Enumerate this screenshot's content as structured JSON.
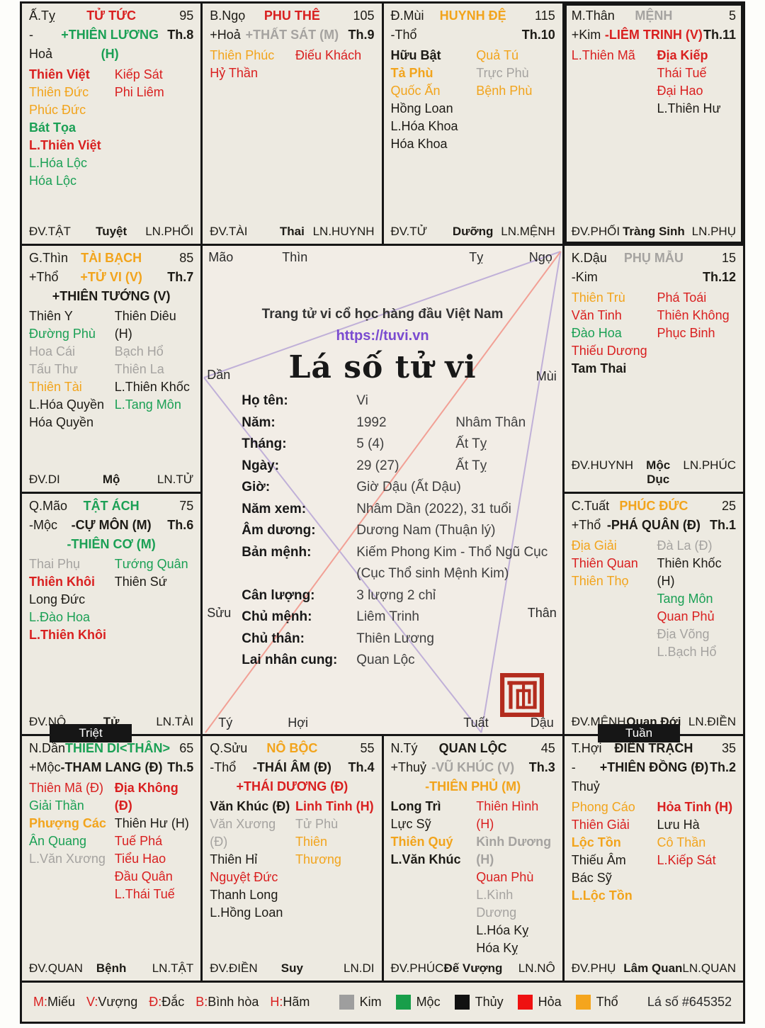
{
  "palette": {
    "red": "#d92020",
    "orange": "#f2a41c",
    "green": "#1ba055",
    "gray": "#a5a3a0",
    "black": "#1d1b16",
    "cell_bg": "#edeae1",
    "center_bg": "#f2ede6",
    "border": "#161616",
    "url_purple": "#7a4bd0",
    "line_trine": "#c0b0d8",
    "line_opposition": "#f2a095",
    "seal_red": "#b32c1e",
    "badge_bg": "#161616"
  },
  "badges": [
    {
      "text": "Triệt"
    },
    {
      "text": "Tuần"
    }
  ],
  "center": {
    "brand": "Trang tử vi cổ học hàng đầu Việt Nam",
    "url": "https://tuvi.vn",
    "title": "Lá số tử vi",
    "branch_markers": {
      "top": [
        "Mão",
        "Thìn",
        "Tỵ",
        "Ngọ"
      ],
      "left": [
        "Dần",
        "Sửu"
      ],
      "right": [
        "Mùi",
        "Thân"
      ],
      "bottom": [
        "Tý",
        "Hợi",
        "Tuất",
        "Dậu"
      ]
    },
    "info": [
      {
        "label": "Họ tên:",
        "value": "Vi",
        "value2": ""
      },
      {
        "label": "Năm:",
        "value": "1992",
        "value2": "Nhâm Thân"
      },
      {
        "label": "Tháng:",
        "value": "5 (4)",
        "value2": "Ất Tỵ"
      },
      {
        "label": "Ngày:",
        "value": "29 (27)",
        "value2": "Ất Tỵ"
      },
      {
        "label": "Giờ:",
        "value": "Giờ Dậu (Ất Dậu)",
        "value2": ""
      },
      {
        "label": "Năm xem:",
        "value": "Nhâm Dần (2022), 31 tuổi",
        "value2": ""
      },
      {
        "label": "Âm dương:",
        "value": "Dương Nam (Thuận lý)",
        "value2": ""
      },
      {
        "label": "Bản mệnh:",
        "value": "Kiếm Phong Kim - Thổ Ngũ Cục",
        "value2": ""
      },
      {
        "label": "",
        "value": "(Cục Thổ sinh Mệnh Kim)",
        "value2": ""
      },
      {
        "label": "Cân lượng:",
        "value": "3 lượng 2 chỉ",
        "value2": ""
      },
      {
        "label": "Chủ mệnh:",
        "value": "Liêm Trinh",
        "value2": ""
      },
      {
        "label": "Chủ thân:",
        "value": "Thiên Lương",
        "value2": ""
      },
      {
        "label": "Lai nhân cung:",
        "value": "Quan Lộc",
        "value2": ""
      }
    ]
  },
  "palaces": [
    {
      "pos": "ty",
      "branch": "Ấ.Tỵ",
      "name": "TỬ TỨC",
      "name_c": "red",
      "number": "95",
      "element": "-Hoả",
      "major1": {
        "t": "+THIÊN LƯƠNG (H)",
        "c": "green"
      },
      "th": "Th.8",
      "major2": null,
      "stars_left": [
        {
          "t": "Thiên Việt",
          "c": "red",
          "b": true
        },
        {
          "t": "Thiên Đức",
          "c": "orange"
        },
        {
          "t": "Phúc Đức",
          "c": "orange"
        },
        {
          "t": "Bát Tọa",
          "c": "green",
          "b": true
        },
        {
          "t": "L.Thiên Việt",
          "c": "red",
          "b": true
        },
        {
          "t": "L.Hóa Lộc",
          "c": "green"
        },
        {
          "t": "Hóa Lộc",
          "c": "green"
        }
      ],
      "stars_right": [
        {
          "t": "Kiếp Sát",
          "c": "red"
        },
        {
          "t": "Phi Liêm",
          "c": "red"
        }
      ],
      "dv": "ĐV.TẬT",
      "stage": "Tuyệt",
      "ln": "LN.PHỐI"
    },
    {
      "pos": "ngo",
      "branch": "B.Ngọ",
      "name": "PHU THÊ",
      "name_c": "red",
      "number": "105",
      "element": "+Hoả",
      "major1": {
        "t": "+THẤT SÁT (M)",
        "c": "gray"
      },
      "th": "Th.9",
      "major2": null,
      "stars_left": [
        {
          "t": "Thiên Phúc",
          "c": "orange"
        },
        {
          "t": "Hỷ Thần",
          "c": "red"
        }
      ],
      "stars_right": [
        {
          "t": "Điếu Khách",
          "c": "red"
        }
      ],
      "dv": "ĐV.TÀI",
      "stage": "Thai",
      "ln": "LN.HUYNH"
    },
    {
      "pos": "mui",
      "branch": "Đ.Mùi",
      "name": "HUYNH ĐỆ",
      "name_c": "orange",
      "number": "115",
      "element": "-Thổ",
      "major1": null,
      "th": "Th.10",
      "major2": null,
      "stars_left": [
        {
          "t": "Hữu Bật",
          "c": "black",
          "b": true
        },
        {
          "t": "Tả Phù",
          "c": "orange",
          "b": true
        },
        {
          "t": "Quốc Ấn",
          "c": "orange"
        },
        {
          "t": "Hồng Loan",
          "c": "black"
        },
        {
          "t": "L.Hóa Khoa",
          "c": "black"
        },
        {
          "t": "Hóa Khoa",
          "c": "black"
        }
      ],
      "stars_right": [
        {
          "t": "Quả Tú",
          "c": "orange"
        },
        {
          "t": "Trực Phù",
          "c": "gray"
        },
        {
          "t": "Bệnh Phù",
          "c": "orange"
        }
      ],
      "dv": "ĐV.TỬ",
      "stage": "Dưỡng",
      "ln": "LN.MỆNH"
    },
    {
      "pos": "than",
      "branch": "M.Thân",
      "name": "MỆNH",
      "name_c": "gray",
      "number": "5",
      "element": "+Kim",
      "major1": {
        "t": "-LIÊM TRINH (V)",
        "c": "red"
      },
      "th": "Th.11",
      "major2": null,
      "highlight": true,
      "stars_left": [
        {
          "t": "L.Thiên Mã",
          "c": "red"
        }
      ],
      "stars_right": [
        {
          "t": "Địa Kiếp",
          "c": "red",
          "b": true
        },
        {
          "t": "Thái Tuế",
          "c": "red"
        },
        {
          "t": "Đại Hao",
          "c": "red"
        },
        {
          "t": "L.Thiên Hư",
          "c": "black"
        }
      ],
      "dv": "ĐV.PHỐI",
      "stage": "Tràng Sinh",
      "ln": "LN.PHỤ"
    },
    {
      "pos": "thin",
      "branch": "G.Thìn",
      "name": "TÀI BẠCH",
      "name_c": "orange",
      "number": "85",
      "element": "+Thổ",
      "major1": {
        "t": "+TỬ VI (V)",
        "c": "orange"
      },
      "th": "Th.7",
      "major2": {
        "t": "+THIÊN TƯỚNG (V)",
        "c": "black"
      },
      "stars_left": [
        {
          "t": "Thiên Y",
          "c": "black"
        },
        {
          "t": "Đường Phù",
          "c": "green"
        },
        {
          "t": "Hoa Cái",
          "c": "gray"
        },
        {
          "t": "Tấu Thư",
          "c": "gray"
        },
        {
          "t": "Thiên Tài",
          "c": "orange"
        },
        {
          "t": "L.Hóa Quyền",
          "c": "black"
        },
        {
          "t": "Hóa Quyền",
          "c": "black"
        }
      ],
      "stars_right": [
        {
          "t": "Thiên Diêu (H)",
          "c": "black"
        },
        {
          "t": "Bạch Hổ",
          "c": "gray"
        },
        {
          "t": "Thiên La",
          "c": "gray"
        },
        {
          "t": "L.Thiên Khốc",
          "c": "black"
        },
        {
          "t": "L.Tang Môn",
          "c": "green"
        }
      ],
      "dv": "ĐV.DI",
      "stage": "Mộ",
      "ln": "LN.TỬ"
    },
    {
      "pos": "dau",
      "branch": "K.Dậu",
      "name": "PHỤ MẪU",
      "name_c": "gray",
      "number": "15",
      "element": "-Kim",
      "major1": null,
      "th": "Th.12",
      "major2": null,
      "stars_left": [
        {
          "t": "Thiên Trù",
          "c": "orange"
        },
        {
          "t": "Văn Tinh",
          "c": "red"
        },
        {
          "t": "Đào Hoa",
          "c": "green"
        },
        {
          "t": "Thiếu Dương",
          "c": "red"
        },
        {
          "t": "Tam Thai",
          "c": "black",
          "b": true
        }
      ],
      "stars_right": [
        {
          "t": "Phá Toái",
          "c": "red"
        },
        {
          "t": "Thiên Không",
          "c": "red"
        },
        {
          "t": "Phục Binh",
          "c": "red"
        }
      ],
      "dv": "ĐV.HUYNH",
      "stage": "Mộc Dục",
      "ln": "LN.PHÚC"
    },
    {
      "pos": "mao",
      "branch": "Q.Mão",
      "name": "TẬT ÁCH",
      "name_c": "green",
      "number": "75",
      "element": "-Mộc",
      "major1": {
        "t": "-CỰ MÔN (M)",
        "c": "black"
      },
      "th": "Th.6",
      "major2": {
        "t": "-THIÊN CƠ (M)",
        "c": "green"
      },
      "stars_left": [
        {
          "t": "Thai Phụ",
          "c": "gray"
        },
        {
          "t": "Thiên Khôi",
          "c": "red",
          "b": true
        },
        {
          "t": "Long Đức",
          "c": "black"
        },
        {
          "t": "L.Đào Hoa",
          "c": "green"
        },
        {
          "t": "L.Thiên Khôi",
          "c": "red",
          "b": true
        }
      ],
      "stars_right": [
        {
          "t": "Tướng Quân",
          "c": "green"
        },
        {
          "t": "Thiên Sứ",
          "c": "black"
        }
      ],
      "dv": "ĐV.NÔ",
      "stage": "Tử",
      "ln": "LN.TÀI"
    },
    {
      "pos": "tuat",
      "branch": "C.Tuất",
      "name": "PHÚC ĐỨC",
      "name_c": "orange",
      "number": "25",
      "element": "+Thổ",
      "major1": {
        "t": "-PHÁ QUÂN (Đ)",
        "c": "black"
      },
      "th": "Th.1",
      "major2": null,
      "stars_left": [
        {
          "t": "Địa Giải",
          "c": "orange"
        },
        {
          "t": "Thiên Quan",
          "c": "red"
        },
        {
          "t": "Thiên Thọ",
          "c": "orange"
        }
      ],
      "stars_right": [
        {
          "t": "Đà La (Đ)",
          "c": "gray"
        },
        {
          "t": "Thiên Khốc (H)",
          "c": "black"
        },
        {
          "t": "Tang Môn",
          "c": "green"
        },
        {
          "t": "Quan Phủ",
          "c": "red"
        },
        {
          "t": "Địa Võng",
          "c": "gray"
        },
        {
          "t": "L.Bạch Hổ",
          "c": "gray"
        }
      ],
      "dv": "ĐV.MỆNH",
      "stage": "Quan Đới",
      "ln": "LN.ĐIỀN"
    },
    {
      "pos": "dan",
      "branch": "N.Dần",
      "name": "THIÊN DI<THÂN>",
      "name_c": "green",
      "number": "65",
      "element": "+Mộc",
      "major1": {
        "t": "-THAM LANG (Đ)",
        "c": "black"
      },
      "th": "Th.5",
      "major2": null,
      "stars_left": [
        {
          "t": "Thiên Mã (Đ)",
          "c": "red"
        },
        {
          "t": "Giải Thần",
          "c": "green"
        },
        {
          "t": "Phượng Các",
          "c": "orange",
          "b": true
        },
        {
          "t": "Ân Quang",
          "c": "green"
        },
        {
          "t": "L.Văn Xương",
          "c": "gray"
        }
      ],
      "stars_right": [
        {
          "t": "Địa Không (Đ)",
          "c": "red",
          "b": true
        },
        {
          "t": "Thiên Hư (H)",
          "c": "black"
        },
        {
          "t": "Tuế Phá",
          "c": "red"
        },
        {
          "t": "Tiểu Hao",
          "c": "red"
        },
        {
          "t": "Đầu Quân",
          "c": "red"
        },
        {
          "t": "L.Thái Tuế",
          "c": "red"
        }
      ],
      "dv": "ĐV.QUAN",
      "stage": "Bệnh",
      "ln": "LN.TẬT"
    },
    {
      "pos": "suu",
      "branch": "Q.Sửu",
      "name": "NÔ BỘC",
      "name_c": "orange",
      "number": "55",
      "element": "-Thổ",
      "major1": {
        "t": "-THÁI ÂM (Đ)",
        "c": "black"
      },
      "th": "Th.4",
      "major2": {
        "t": "+THÁI DƯƠNG (Đ)",
        "c": "red"
      },
      "stars_left": [
        {
          "t": "Văn Khúc (Đ)",
          "c": "black",
          "b": true
        },
        {
          "t": "Văn Xương (Đ)",
          "c": "gray"
        },
        {
          "t": "Thiên Hỉ",
          "c": "black"
        },
        {
          "t": "Nguyệt Đức",
          "c": "red"
        },
        {
          "t": "Thanh Long",
          "c": "black"
        },
        {
          "t": "L.Hồng Loan",
          "c": "black"
        }
      ],
      "stars_right": [
        {
          "t": "Linh Tinh (H)",
          "c": "red",
          "b": true
        },
        {
          "t": "Tử Phù",
          "c": "gray"
        },
        {
          "t": "Thiên Thương",
          "c": "orange"
        }
      ],
      "dv": "ĐV.ĐIỀN",
      "stage": "Suy",
      "ln": "LN.DI"
    },
    {
      "pos": "tys",
      "branch": "N.Tý",
      "name": "QUAN LỘC",
      "name_c": "black",
      "number": "45",
      "element": "+Thuỷ",
      "major1": {
        "t": "-VŨ KHÚC (V)",
        "c": "gray"
      },
      "th": "Th.3",
      "major2": {
        "t": "-THIÊN PHỦ (M)",
        "c": "orange"
      },
      "stars_left": [
        {
          "t": "Long Trì",
          "c": "black",
          "b": true
        },
        {
          "t": "Lực Sỹ",
          "c": "black"
        },
        {
          "t": "Thiên Quý",
          "c": "orange",
          "b": true
        },
        {
          "t": "L.Văn Khúc",
          "c": "black",
          "b": true
        }
      ],
      "stars_right": [
        {
          "t": "Thiên Hình (H)",
          "c": "red"
        },
        {
          "t": "Kình Dương (H)",
          "c": "gray",
          "b": true
        },
        {
          "t": "Quan Phù",
          "c": "red"
        },
        {
          "t": "L.Kình Dương",
          "c": "gray"
        },
        {
          "t": "L.Hóa Kỵ",
          "c": "black"
        },
        {
          "t": "Hóa Kỵ",
          "c": "black"
        }
      ],
      "dv": "ĐV.PHÚC",
      "stage": "Đế Vượng",
      "ln": "LN.NÔ"
    },
    {
      "pos": "hoi",
      "branch": "T.Hợi",
      "name": "ĐIỀN TRẠCH",
      "name_c": "black",
      "number": "35",
      "element": "-Thuỷ",
      "major1": {
        "t": "+THIÊN ĐỒNG (Đ)",
        "c": "black"
      },
      "th": "Th.2",
      "major2": null,
      "stars_left": [
        {
          "t": "Phong Cáo",
          "c": "orange"
        },
        {
          "t": "Thiên Giải",
          "c": "red"
        },
        {
          "t": "Lộc Tồn",
          "c": "orange",
          "b": true
        },
        {
          "t": "Thiếu Âm",
          "c": "black"
        },
        {
          "t": "Bác Sỹ",
          "c": "black"
        },
        {
          "t": "L.Lộc Tồn",
          "c": "orange",
          "b": true
        }
      ],
      "stars_right": [
        {
          "t": "Hỏa Tinh (H)",
          "c": "red",
          "b": true
        },
        {
          "t": "Lưu Hà",
          "c": "black"
        },
        {
          "t": "Cô Thần",
          "c": "orange"
        },
        {
          "t": "L.Kiếp Sát",
          "c": "red"
        }
      ],
      "dv": "ĐV.PHỤ",
      "stage": "Lâm Quan",
      "ln": "LN.QUAN"
    }
  ],
  "footer": {
    "ratings": [
      {
        "key": "M",
        "word": "Miếu"
      },
      {
        "key": "V",
        "word": "Vượng"
      },
      {
        "key": "Đ",
        "word": "Đắc"
      },
      {
        "key": "B",
        "word": "Bình hòa"
      },
      {
        "key": "H",
        "word": "Hãm"
      }
    ],
    "elements": [
      {
        "name": "Kim",
        "color": "#9e9e9e"
      },
      {
        "name": "Mộc",
        "color": "#189e4a"
      },
      {
        "name": "Thủy",
        "color": "#111111"
      },
      {
        "name": "Hỏa",
        "color": "#ef1111"
      },
      {
        "name": "Thổ",
        "color": "#f5a51d"
      }
    ],
    "sheet_no": "Lá số #645352"
  }
}
